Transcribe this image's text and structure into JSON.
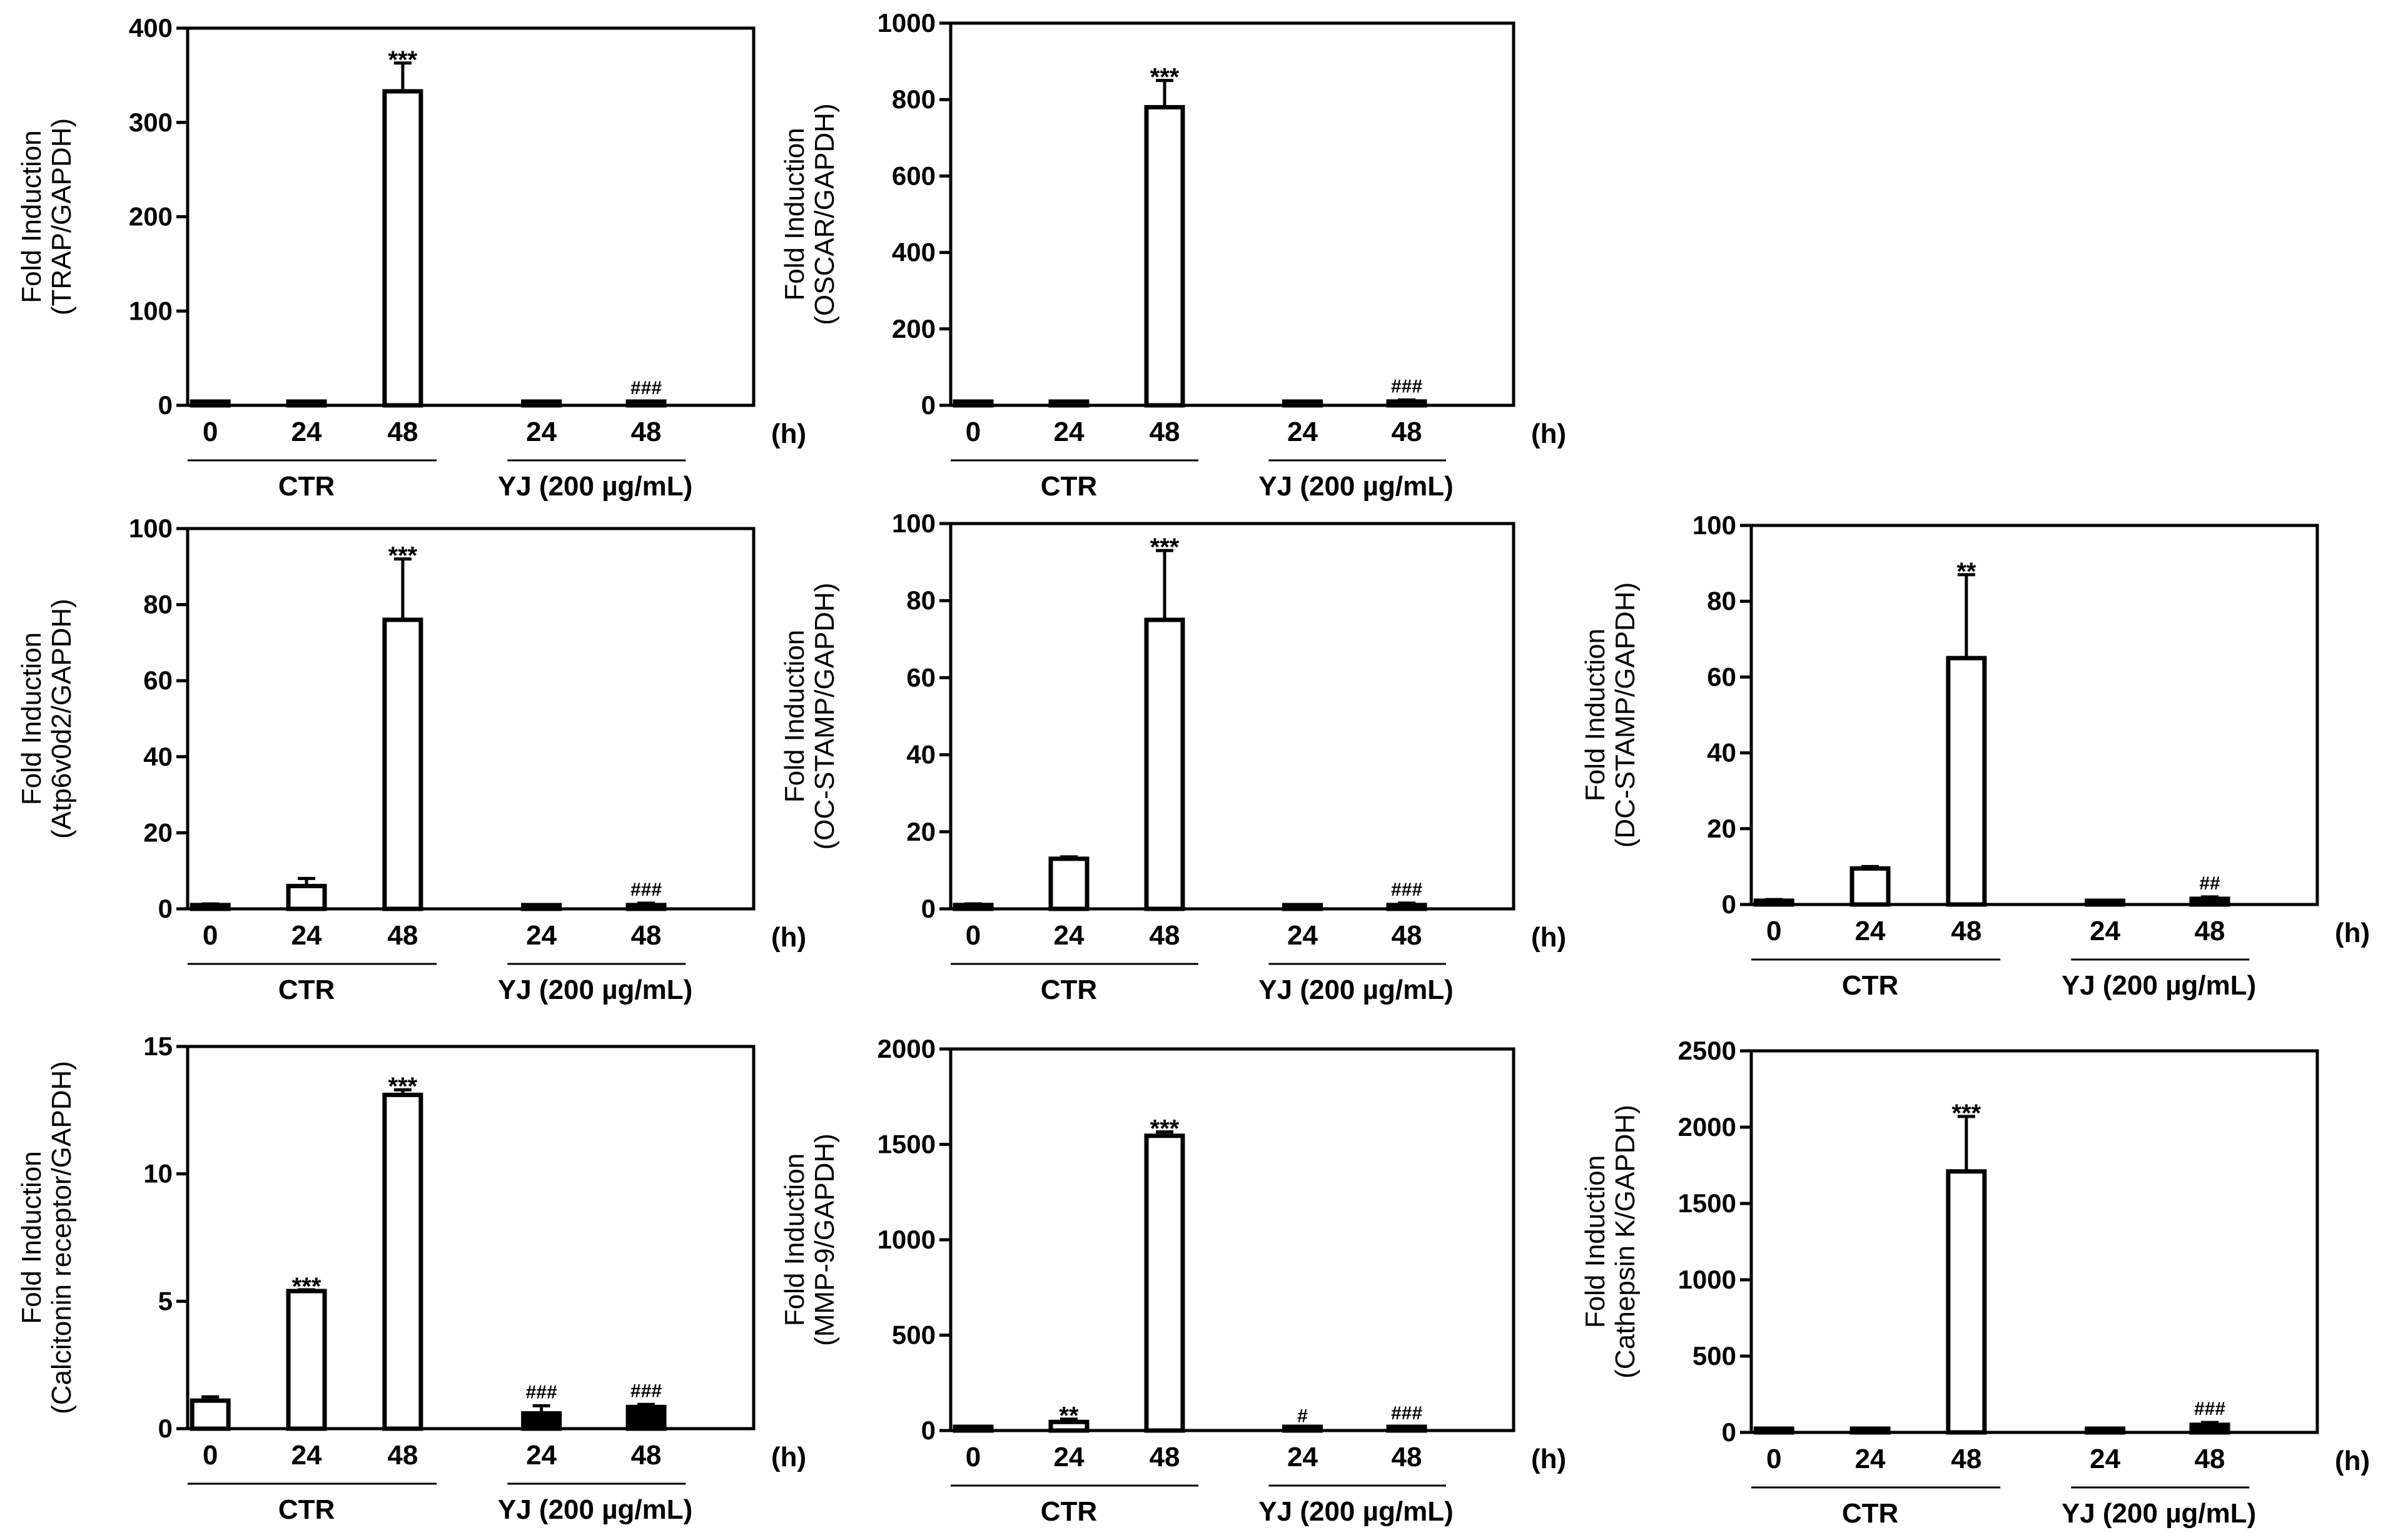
{
  "chart_data": [
    {
      "type": "bar",
      "ylabel": [
        "Fold Induction",
        "(TRAP/GAPDH)"
      ],
      "ylim": [
        0,
        400
      ],
      "yticks": [
        0,
        100,
        200,
        300,
        400
      ],
      "categories": [
        "0",
        "24",
        "48",
        "24",
        "48"
      ],
      "unit_label": "(h)",
      "groups": [
        "CTR",
        "YJ (200 µg/mL)"
      ],
      "values": [
        1,
        2,
        333,
        1,
        3
      ],
      "errors": [
        1,
        1,
        30,
        0,
        1
      ],
      "annotations": [
        "",
        "",
        "***",
        "",
        "###"
      ],
      "fills": [
        "white",
        "white",
        "white",
        "black",
        "black"
      ]
    },
    {
      "type": "bar",
      "ylabel": [
        "Fold Induction",
        "(OSCAR/GAPDH)"
      ],
      "ylim": [
        0,
        1000
      ],
      "yticks": [
        0,
        200,
        400,
        600,
        800,
        1000
      ],
      "categories": [
        "0",
        "24",
        "48",
        "24",
        "48"
      ],
      "unit_label": "(h)",
      "groups": [
        "CTR",
        "YJ (200 µg/mL)"
      ],
      "values": [
        1,
        2,
        780,
        2,
        10
      ],
      "errors": [
        1,
        1,
        70,
        1,
        4
      ],
      "annotations": [
        "",
        "",
        "***",
        "",
        "###"
      ],
      "fills": [
        "white",
        "white",
        "white",
        "black",
        "black"
      ]
    },
    {
      "type": "bar",
      "ylabel": [
        "Fold Induction",
        "(Atp6v0d2/GAPDH)"
      ],
      "ylim": [
        0,
        100
      ],
      "yticks": [
        0,
        20,
        40,
        60,
        80,
        100
      ],
      "categories": [
        "0",
        "24",
        "48",
        "24",
        "48"
      ],
      "unit_label": "(h)",
      "groups": [
        "CTR",
        "YJ (200 µg/mL)"
      ],
      "values": [
        1,
        6,
        76,
        0.3,
        1
      ],
      "errors": [
        0.3,
        2,
        16,
        0,
        0.5
      ],
      "annotations": [
        "",
        "",
        "***",
        "",
        "###"
      ],
      "fills": [
        "white",
        "white",
        "white",
        "black",
        "black"
      ]
    },
    {
      "type": "bar",
      "ylabel": [
        "Fold Induction",
        "(OC-STAMP/GAPDH)"
      ],
      "ylim": [
        0,
        100
      ],
      "yticks": [
        0,
        20,
        40,
        60,
        80,
        100
      ],
      "categories": [
        "0",
        "24",
        "48",
        "24",
        "48"
      ],
      "unit_label": "(h)",
      "groups": [
        "CTR",
        "YJ (200 µg/mL)"
      ],
      "values": [
        1,
        13,
        75,
        0.3,
        1
      ],
      "errors": [
        0.3,
        0.5,
        18,
        0,
        0.5
      ],
      "annotations": [
        "",
        "",
        "***",
        "",
        "###"
      ],
      "fills": [
        "white",
        "white",
        "white",
        "black",
        "black"
      ]
    },
    {
      "type": "bar",
      "ylabel": [
        "Fold Induction",
        "(DC-STAMP/GAPDH)"
      ],
      "ylim": [
        0,
        100
      ],
      "yticks": [
        0,
        20,
        40,
        60,
        80,
        100
      ],
      "categories": [
        "0",
        "24",
        "48",
        "24",
        "48"
      ],
      "unit_label": "(h)",
      "groups": [
        "CTR",
        "YJ (200 µg/mL)"
      ],
      "values": [
        1,
        9.5,
        65,
        0.3,
        1.5
      ],
      "errors": [
        0.3,
        0.5,
        22,
        0,
        0.5
      ],
      "annotations": [
        "",
        "",
        "**",
        "",
        "##"
      ],
      "fills": [
        "white",
        "white",
        "white",
        "black",
        "black"
      ]
    },
    {
      "type": "bar",
      "ylabel": [
        "Fold Induction",
        "(Calcitonin receptor/GAPDH)"
      ],
      "ylim": [
        0,
        15
      ],
      "yticks": [
        0,
        5,
        10,
        15
      ],
      "categories": [
        "0",
        "24",
        "48",
        "24",
        "48"
      ],
      "unit_label": "(h)",
      "groups": [
        "CTR",
        "YJ (200 µg/mL)"
      ],
      "values": [
        1.1,
        5.4,
        13.1,
        0.6,
        0.85
      ],
      "errors": [
        0.15,
        0.05,
        0.2,
        0.3,
        0.1
      ],
      "annotations": [
        "",
        "***",
        "***",
        "###",
        "###"
      ],
      "fills": [
        "white",
        "white",
        "white",
        "black",
        "black"
      ]
    },
    {
      "type": "bar",
      "ylabel": [
        "Fold Induction",
        "(MMP-9/GAPDH)"
      ],
      "ylim": [
        0,
        2000
      ],
      "yticks": [
        0,
        500,
        1000,
        1500,
        2000
      ],
      "categories": [
        "0",
        "24",
        "48",
        "24",
        "48"
      ],
      "unit_label": "(h)",
      "groups": [
        "CTR",
        "YJ (200 µg/mL)"
      ],
      "values": [
        1,
        45,
        1545,
        5,
        15
      ],
      "errors": [
        0,
        15,
        20,
        0,
        5
      ],
      "annotations": [
        "",
        "**",
        "***",
        "#",
        "###"
      ],
      "fills": [
        "white",
        "white",
        "white",
        "black",
        "black"
      ]
    },
    {
      "type": "bar",
      "ylabel": [
        "Fold Induction",
        "(Cathepsin K/GAPDH)"
      ],
      "ylim": [
        0,
        2500
      ],
      "yticks": [
        0,
        500,
        1000,
        1500,
        2000,
        2500
      ],
      "categories": [
        "0",
        "24",
        "48",
        "24",
        "48"
      ],
      "unit_label": "(h)",
      "groups": [
        "CTR",
        "YJ (200 µg/mL)"
      ],
      "values": [
        1,
        2,
        1710,
        1,
        50
      ],
      "errors": [
        0,
        0,
        360,
        0,
        15
      ],
      "annotations": [
        "",
        "",
        "***",
        "",
        "###"
      ],
      "fills": [
        "white",
        "white",
        "white",
        "black",
        "black"
      ]
    }
  ]
}
